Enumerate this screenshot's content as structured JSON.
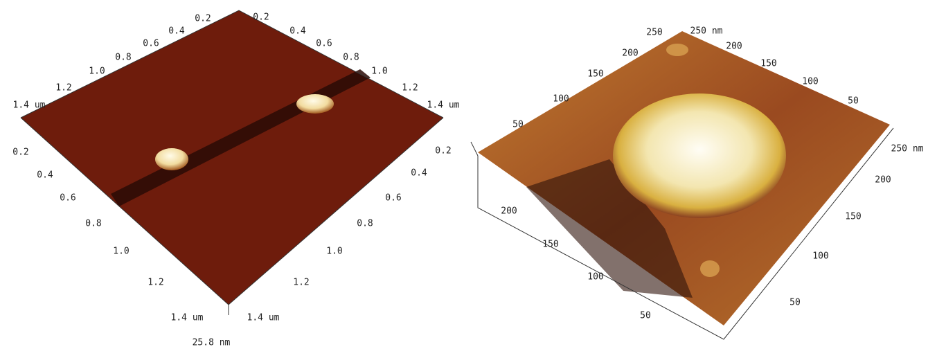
{
  "left_panel": {
    "edge_top_left": [
      "0.2",
      "0.4",
      "0.6",
      "0.8",
      "1.0",
      "1.2",
      "1.4 um"
    ],
    "edge_top_right": [
      "0.2",
      "0.4",
      "0.6",
      "0.8",
      "1.0",
      "1.2",
      "1.4 um"
    ],
    "edge_bottom_left": [
      "0.2",
      "0.4",
      "0.6",
      "0.8",
      "1.0",
      "1.2",
      "1.4 um"
    ],
    "edge_bottom_right": [
      "1.4 um",
      "1.2",
      "1.0",
      "0.8",
      "0.6",
      "0.4",
      "0.2"
    ],
    "height_scale": "25.8 nm"
  },
  "right_panel": {
    "edge_top_left": [
      "250",
      "200",
      "150",
      "100",
      "50"
    ],
    "corner_label": "250 nm",
    "edge_top_right": [
      "200",
      "150",
      "100",
      "50"
    ],
    "edge_right": [
      "250 nm",
      "200",
      "150",
      "100",
      "50"
    ],
    "edge_bottom_left": [
      "200",
      "150",
      "100",
      "50"
    ]
  }
}
